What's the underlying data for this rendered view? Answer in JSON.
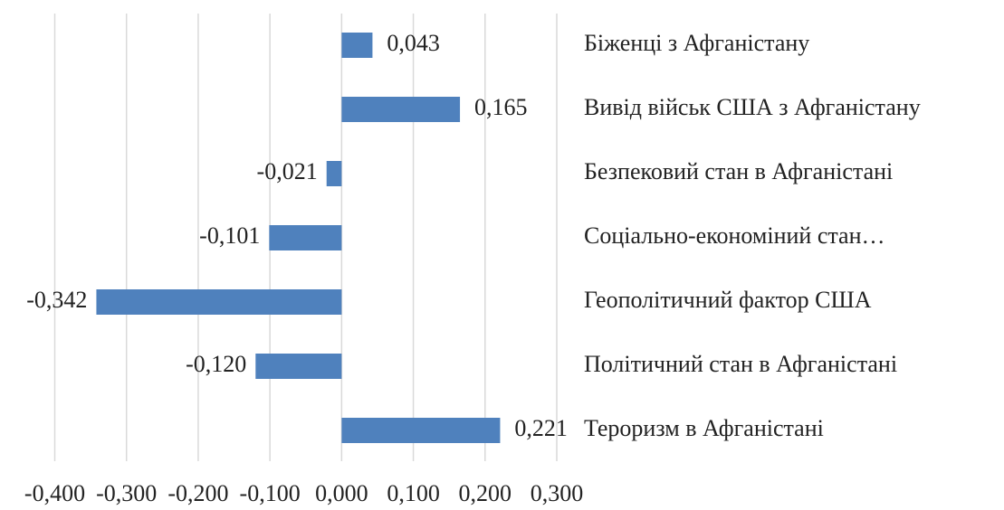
{
  "chart_data": {
    "type": "bar",
    "orientation": "horizontal",
    "categories": [
      "Біженці з Афганістану",
      "Вивід військ США з Афганістану",
      "Безпековий стан в Афганістані",
      "Соціально-економіний стан…",
      "Геополітичний фактор США",
      "Політичний стан в Афганістані",
      "Тероризм в Афганістані"
    ],
    "values": [
      0.043,
      0.165,
      -0.021,
      -0.101,
      -0.342,
      -0.12,
      0.221
    ],
    "value_labels": [
      "0,043",
      "0,165",
      "-0,021",
      "-0,101",
      "-0,342",
      "-0,120",
      "0,221"
    ],
    "color": "#4f81bd",
    "xlim": [
      -0.4,
      0.3
    ],
    "xticks": [
      {
        "value": -0.4,
        "label": "-0,400"
      },
      {
        "value": -0.3,
        "label": "-0,300"
      },
      {
        "value": -0.2,
        "label": "-0,200"
      },
      {
        "value": -0.1,
        "label": "-0,100"
      },
      {
        "value": 0,
        "label": "0,000"
      },
      {
        "value": 0.1,
        "label": "0,100"
      },
      {
        "value": 0.2,
        "label": "0,200"
      },
      {
        "value": 0.3,
        "label": "0,300"
      }
    ],
    "grid": true
  }
}
